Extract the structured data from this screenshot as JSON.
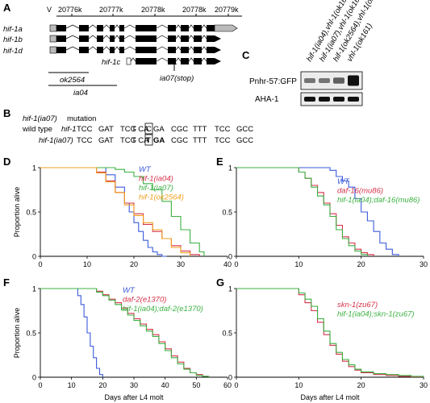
{
  "panels": {
    "A": "A",
    "B": "B",
    "C": "C",
    "D": "D",
    "E": "E",
    "F": "F",
    "G": "G"
  },
  "gene_model": {
    "chromosome": "V",
    "coords": [
      "20776k",
      "20777k",
      "20778k",
      "20778k",
      "20779k"
    ],
    "isoforms": [
      "hif-1a",
      "hif-1b",
      "hif-1d",
      "hif-1c"
    ],
    "deletions": [
      "ok2564",
      "ia04"
    ],
    "point_mutation": "ia07(stop)"
  },
  "western": {
    "lanes": [
      "hif-1(ia04),vhl-1(ok161)",
      "hif-1(ia07),vhl-1(ok161)",
      "hif-1(ok2564),vhl-1(ok161)",
      "vhl-1(ok161)"
    ],
    "rows": [
      "Pnhr-57:GFP",
      "AHA-1"
    ],
    "gfp_levels": [
      0.3,
      0.3,
      0.45,
      1.0
    ]
  },
  "mutation": {
    "title_gene": "hif-1(ia07)",
    "title_rest": " mutation",
    "wt_label": "wild type ",
    "wt_gene": "hif-1",
    "mut_label": "hif-1(ia07)",
    "wt_codons": [
      "TCC",
      "GAT",
      "TCG",
      "T CA",
      "C",
      "GA",
      "CGC",
      "TTT",
      "TCC",
      "GCC"
    ],
    "mut_codons": [
      "TCC",
      "GAT",
      "TCG",
      "T CA",
      "T",
      "GA",
      "CGC",
      "TTT",
      "TCC",
      "GCC"
    ]
  },
  "colors": {
    "WT": "#3b5bdb",
    "red": "#d6324a",
    "green": "#3cb043",
    "orange": "#f0a020"
  },
  "shared_ylabel": "Proportion alive",
  "shared_xlabel": "Days after L4 molt",
  "chart_data": [
    {
      "id": "D",
      "type": "line",
      "xlim": [
        0,
        40
      ],
      "ylim": [
        0,
        1
      ],
      "xticks": [
        "0",
        "10",
        "20",
        "30",
        "40"
      ],
      "yticks": [
        "0",
        "0.5",
        "1"
      ],
      "ylabel": "Proportion alive",
      "series": [
        {
          "name": "WT",
          "color": "#3b5bdb",
          "x": [
            0,
            12,
            14,
            16,
            18,
            19,
            20,
            21,
            22,
            23,
            24,
            25,
            26,
            27
          ],
          "y": [
            1,
            1,
            0.92,
            0.78,
            0.6,
            0.5,
            0.38,
            0.28,
            0.18,
            0.1,
            0.05,
            0.02,
            0,
            0
          ]
        },
        {
          "name": "hif-1(ia04)",
          "color": "#d6324a",
          "x": [
            0,
            10,
            12,
            14,
            16,
            18,
            20,
            22,
            24,
            26,
            28,
            30,
            32,
            34
          ],
          "y": [
            1,
            1,
            0.95,
            0.85,
            0.72,
            0.6,
            0.48,
            0.36,
            0.28,
            0.2,
            0.12,
            0.06,
            0.02,
            0
          ]
        },
        {
          "name": "hif-1(ia07)",
          "color": "#3cb043",
          "x": [
            0,
            14,
            16,
            18,
            20,
            22,
            24,
            26,
            28,
            30,
            32,
            34,
            35
          ],
          "y": [
            1,
            1,
            0.98,
            0.95,
            0.9,
            0.82,
            0.75,
            0.62,
            0.45,
            0.3,
            0.15,
            0.05,
            0
          ]
        },
        {
          "name": "hif-1(ok2564)",
          "color": "#f0a020",
          "x": [
            0,
            10,
            12,
            14,
            16,
            18,
            20,
            22,
            24,
            26,
            28,
            30,
            32
          ],
          "y": [
            1,
            1,
            0.94,
            0.84,
            0.72,
            0.58,
            0.46,
            0.38,
            0.3,
            0.2,
            0.1,
            0.04,
            0
          ]
        }
      ]
    },
    {
      "id": "E",
      "type": "line",
      "xlim": [
        0,
        30
      ],
      "ylim": [
        0,
        1
      ],
      "xticks": [
        "0",
        "10",
        "20",
        "30"
      ],
      "yticks": [
        "0",
        "0.5",
        "1"
      ],
      "series": [
        {
          "name": "WT",
          "color": "#3b5bdb",
          "x": [
            0,
            13,
            15,
            16,
            17,
            18,
            19,
            20,
            21,
            22,
            23,
            24,
            25,
            26
          ],
          "y": [
            1,
            1,
            0.97,
            0.9,
            0.85,
            0.78,
            0.65,
            0.5,
            0.4,
            0.28,
            0.15,
            0.08,
            0.02,
            0
          ]
        },
        {
          "name": "daf-16(mu86)",
          "color": "#d6324a",
          "x": [
            0,
            8,
            10,
            11,
            12,
            13,
            14,
            15,
            16,
            17,
            18,
            19,
            20,
            21,
            22
          ],
          "y": [
            1,
            1,
            0.95,
            0.88,
            0.8,
            0.72,
            0.6,
            0.48,
            0.35,
            0.22,
            0.15,
            0.08,
            0.04,
            0.02,
            0
          ]
        },
        {
          "name": "hif-1(ia04);daf-16(mu86)",
          "color": "#3cb043",
          "x": [
            0,
            9,
            10,
            11,
            12,
            13,
            14,
            15,
            16,
            17,
            18,
            19,
            20,
            21
          ],
          "y": [
            1,
            1,
            0.95,
            0.88,
            0.78,
            0.68,
            0.58,
            0.45,
            0.3,
            0.2,
            0.12,
            0.06,
            0.02,
            0
          ]
        }
      ]
    },
    {
      "id": "F",
      "type": "line",
      "xlim": [
        0,
        60
      ],
      "ylim": [
        0,
        1
      ],
      "xticks": [
        "0",
        "10",
        "20",
        "30",
        "40",
        "50",
        "60"
      ],
      "yticks": [
        "0",
        "0.5",
        "1"
      ],
      "ylabel": "Proportion alive",
      "xlabel": "Days after L4 molt",
      "series": [
        {
          "name": "WT",
          "color": "#3b5bdb",
          "x": [
            0,
            10,
            12,
            13,
            14,
            15,
            16,
            17,
            18,
            19,
            20
          ],
          "y": [
            1,
            1,
            0.92,
            0.82,
            0.68,
            0.5,
            0.35,
            0.22,
            0.1,
            0.03,
            0
          ]
        },
        {
          "name": "daf-2(e1370)",
          "color": "#d6324a",
          "x": [
            0,
            14,
            18,
            20,
            22,
            24,
            26,
            28,
            30,
            32,
            34,
            36,
            38,
            40,
            42,
            44,
            46,
            48,
            50,
            52,
            54
          ],
          "y": [
            1,
            1,
            0.97,
            0.93,
            0.88,
            0.84,
            0.78,
            0.72,
            0.66,
            0.6,
            0.54,
            0.48,
            0.4,
            0.32,
            0.24,
            0.17,
            0.1,
            0.05,
            0.03,
            0.01,
            0
          ]
        },
        {
          "name": "hif-1(ia04);daf-2(e1370)",
          "color": "#3cb043",
          "x": [
            0,
            14,
            18,
            20,
            22,
            24,
            26,
            28,
            30,
            32,
            34,
            36,
            38,
            40,
            42,
            44,
            46,
            48,
            50,
            52,
            54
          ],
          "y": [
            1,
            1,
            0.96,
            0.92,
            0.87,
            0.82,
            0.76,
            0.7,
            0.64,
            0.58,
            0.52,
            0.46,
            0.38,
            0.3,
            0.22,
            0.15,
            0.09,
            0.05,
            0.02,
            0.01,
            0
          ]
        }
      ]
    },
    {
      "id": "G",
      "type": "line",
      "xlim": [
        0,
        30
      ],
      "ylim": [
        0,
        1
      ],
      "xticks": [
        "0",
        "10",
        "20",
        "30"
      ],
      "yticks": [
        "0",
        "0.5",
        "1"
      ],
      "xlabel": "Days after L4 molt",
      "series": [
        {
          "name": "skn-1(zu67)",
          "color": "#d6324a",
          "x": [
            0,
            9,
            10,
            11,
            12,
            13,
            14,
            15,
            16,
            17,
            18,
            19,
            20,
            22,
            24,
            26,
            28,
            30
          ],
          "y": [
            1,
            1,
            0.93,
            0.84,
            0.75,
            0.62,
            0.48,
            0.36,
            0.26,
            0.18,
            0.12,
            0.08,
            0.05,
            0.03,
            0.02,
            0.01,
            0.005,
            0
          ]
        },
        {
          "name": "hif-1(ia04);skn-1(zu67)",
          "color": "#3cb043",
          "x": [
            0,
            9,
            10,
            11,
            12,
            13,
            14,
            15,
            16,
            17,
            18,
            19,
            20,
            22,
            24,
            26,
            28,
            30
          ],
          "y": [
            1,
            1,
            0.95,
            0.88,
            0.8,
            0.66,
            0.52,
            0.38,
            0.28,
            0.2,
            0.14,
            0.09,
            0.06,
            0.04,
            0.03,
            0.02,
            0.01,
            0
          ]
        }
      ]
    }
  ]
}
